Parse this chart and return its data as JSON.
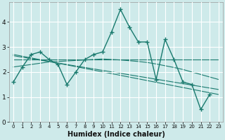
{
  "xlabel": "Humidex (Indice chaleur)",
  "ylim": [
    0,
    4.8
  ],
  "xlim": [
    -0.5,
    23.5
  ],
  "yticks": [
    0,
    1,
    2,
    3,
    4
  ],
  "xticks": [
    0,
    1,
    2,
    3,
    4,
    5,
    6,
    7,
    8,
    9,
    10,
    11,
    12,
    13,
    14,
    15,
    16,
    17,
    18,
    19,
    20,
    21,
    22,
    23
  ],
  "bg_color": "#ceeaea",
  "plot_bg_color": "#ceeaea",
  "line_color": "#1a7a6e",
  "grid_color": "#ffffff",
  "series": {
    "main": {
      "x": [
        0,
        1,
        2,
        3,
        4,
        5,
        6,
        7,
        8,
        9,
        10,
        11,
        12,
        13,
        14,
        15,
        16,
        17,
        18,
        19,
        20,
        21,
        22,
        23
      ],
      "y": [
        1.6,
        2.2,
        2.7,
        2.8,
        2.5,
        2.3,
        1.5,
        2.0,
        2.5,
        2.7,
        2.8,
        3.6,
        4.5,
        3.8,
        3.2,
        3.2,
        1.7,
        3.3,
        2.5,
        1.6,
        1.5,
        0.5,
        1.1,
        null
      ]
    },
    "trend_long1": {
      "x": [
        0,
        23
      ],
      "y": [
        2.7,
        1.1
      ]
    },
    "trend_long2": {
      "x": [
        0,
        23
      ],
      "y": [
        2.65,
        1.3
      ]
    },
    "trend_flat": {
      "x": [
        0,
        23
      ],
      "y": [
        2.5,
        2.5
      ]
    },
    "trend_curve": {
      "x": [
        0,
        1,
        2,
        3,
        4,
        5,
        6,
        7,
        8,
        9,
        10,
        11,
        12,
        13,
        14,
        15,
        16,
        17,
        18,
        19,
        20,
        21,
        22,
        23
      ],
      "y": [
        2.2,
        2.25,
        2.3,
        2.35,
        2.4,
        2.42,
        2.44,
        2.46,
        2.48,
        2.5,
        2.52,
        2.5,
        2.48,
        2.45,
        2.42,
        2.38,
        2.32,
        2.25,
        2.18,
        2.1,
        2.0,
        1.9,
        1.8,
        1.7
      ]
    }
  }
}
